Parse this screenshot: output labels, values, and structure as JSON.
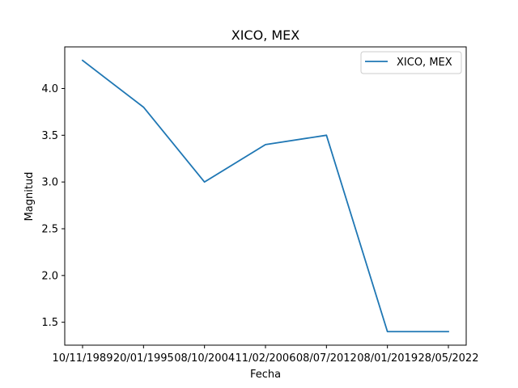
{
  "chart_data": {
    "type": "line",
    "title": "XICO, MEX",
    "xlabel": "Fecha",
    "ylabel": "Magnitud",
    "categories": [
      "10/11/1989",
      "20/01/1995",
      "08/10/2004",
      "11/02/2006",
      "08/07/2012",
      "08/01/2019",
      "28/05/2022"
    ],
    "series": [
      {
        "name": "XICO, MEX",
        "values": [
          4.3,
          3.8,
          3.0,
          3.4,
          3.5,
          1.4,
          1.4
        ]
      }
    ],
    "ylim": [
      1.255,
      4.445
    ],
    "yticks": [
      1.5,
      2.0,
      2.5,
      3.0,
      3.5,
      4.0
    ],
    "ytick_labels": [
      "1.5",
      "2.0",
      "2.5",
      "3.0",
      "3.5",
      "4.0"
    ],
    "legend_position": "top-right",
    "grid": false,
    "line_color": "#1f77b4"
  }
}
